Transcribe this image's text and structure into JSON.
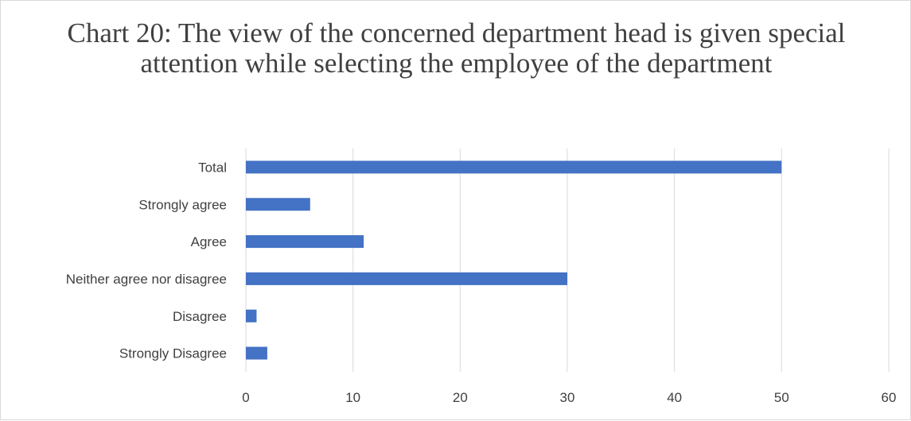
{
  "chart_data": {
    "type": "bar",
    "orientation": "horizontal",
    "title": "Chart 20: The view of the concerned department head is given special attention while selecting the employee of the department",
    "categories": [
      "Total",
      "Strongly agree",
      "Agree",
      "Neither agree nor disagree",
      "Disagree",
      "Strongly Disagree"
    ],
    "values": [
      50,
      6,
      11,
      30,
      1,
      2
    ],
    "xlim": [
      0,
      60
    ],
    "xticks": [
      "0",
      "10",
      "20",
      "30",
      "40",
      "50",
      "60"
    ],
    "grid": true,
    "legend": "none",
    "colors": {
      "bar": "#4472c4",
      "grid": "#d9d9d9",
      "text": "#404040"
    }
  }
}
